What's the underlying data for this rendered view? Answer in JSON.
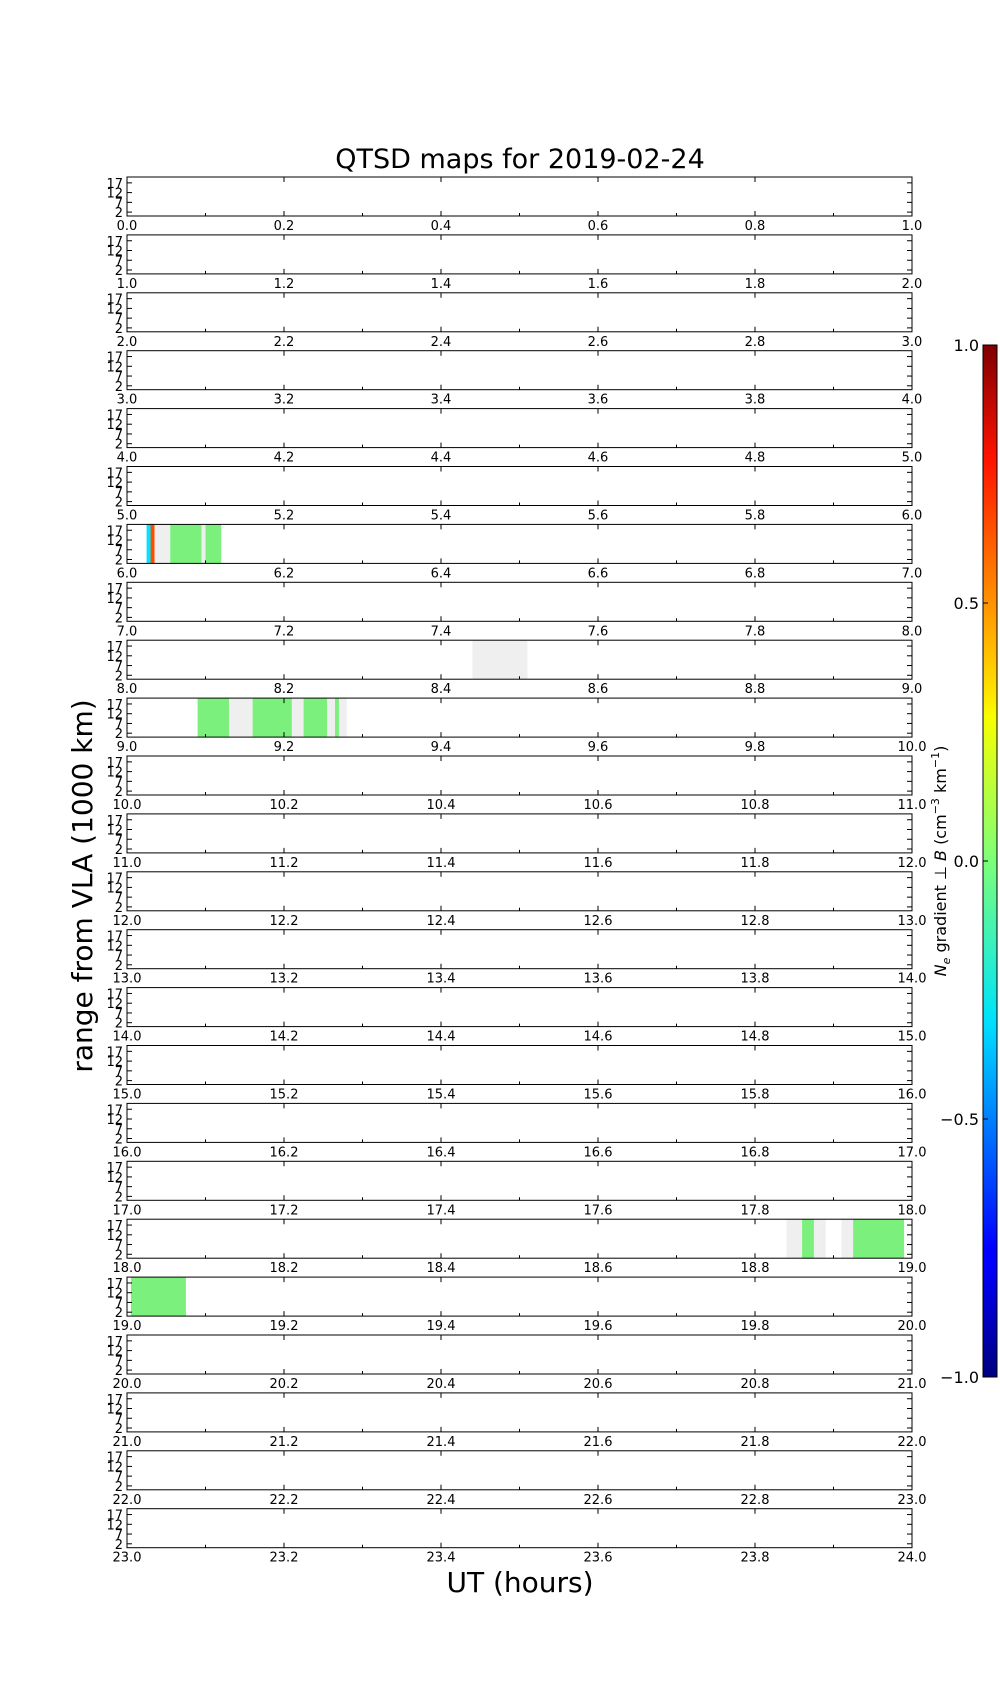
{
  "chart_data": {
    "type": "heatmap",
    "title": "QTSD maps for 2019-02-24",
    "xlabel": "UT (hours)",
    "ylabel": "range from VLA (1000 km)",
    "y_ticks": [
      "2",
      "7",
      "12",
      "17"
    ],
    "y_range": [
      0,
      20
    ],
    "panels": [
      {
        "hour": 0,
        "x_ticks": [
          "0.0",
          "0.2",
          "0.4",
          "0.6",
          "0.8",
          "1.0"
        ],
        "segments": []
      },
      {
        "hour": 1,
        "x_ticks": [
          "1.0",
          "1.2",
          "1.4",
          "1.6",
          "1.8",
          "2.0"
        ],
        "segments": []
      },
      {
        "hour": 2,
        "x_ticks": [
          "2.0",
          "2.2",
          "2.4",
          "2.6",
          "2.8",
          "3.0"
        ],
        "segments": []
      },
      {
        "hour": 3,
        "x_ticks": [
          "3.0",
          "3.2",
          "3.4",
          "3.6",
          "3.8",
          "4.0"
        ],
        "segments": []
      },
      {
        "hour": 4,
        "x_ticks": [
          "4.0",
          "4.2",
          "4.4",
          "4.6",
          "4.8",
          "5.0"
        ],
        "segments": []
      },
      {
        "hour": 5,
        "x_ticks": [
          "5.0",
          "5.2",
          "5.4",
          "5.6",
          "5.8",
          "6.0"
        ],
        "segments": []
      },
      {
        "hour": 6,
        "x_ticks": [
          "6.0",
          "6.2",
          "6.4",
          "6.6",
          "6.8",
          "7.0"
        ],
        "segments": [
          {
            "t0": 6.025,
            "t1": 6.055,
            "kind": "nodata"
          },
          {
            "t0": 6.025,
            "t1": 6.035,
            "kind": "value",
            "value": -0.3
          },
          {
            "t0": 6.03,
            "t1": 6.035,
            "kind": "value",
            "value": 0.6
          },
          {
            "t0": 6.055,
            "t1": 6.095,
            "kind": "value",
            "value": 0.0
          },
          {
            "t0": 6.095,
            "t1": 6.1,
            "kind": "nodata"
          },
          {
            "t0": 6.1,
            "t1": 6.12,
            "kind": "value",
            "value": 0.0
          }
        ]
      },
      {
        "hour": 7,
        "x_ticks": [
          "7.0",
          "7.2",
          "7.4",
          "7.6",
          "7.8",
          "8.0"
        ],
        "segments": []
      },
      {
        "hour": 8,
        "x_ticks": [
          "8.0",
          "8.2",
          "8.4",
          "8.6",
          "8.8",
          "9.0"
        ],
        "segments": [
          {
            "t0": 8.44,
            "t1": 8.51,
            "kind": "nodata"
          }
        ]
      },
      {
        "hour": 9,
        "x_ticks": [
          "9.0",
          "9.2",
          "9.4",
          "9.6",
          "9.8",
          "10.0"
        ],
        "segments": [
          {
            "t0": 9.09,
            "t1": 9.13,
            "kind": "value",
            "value": 0.0
          },
          {
            "t0": 9.13,
            "t1": 9.16,
            "kind": "nodata"
          },
          {
            "t0": 9.16,
            "t1": 9.21,
            "kind": "value",
            "value": 0.0
          },
          {
            "t0": 9.21,
            "t1": 9.225,
            "kind": "nodata"
          },
          {
            "t0": 9.225,
            "t1": 9.255,
            "kind": "value",
            "value": 0.0
          },
          {
            "t0": 9.255,
            "t1": 9.28,
            "kind": "nodata"
          },
          {
            "t0": 9.265,
            "t1": 9.27,
            "kind": "value",
            "value": 0.05
          }
        ]
      },
      {
        "hour": 10,
        "x_ticks": [
          "10.0",
          "10.2",
          "10.4",
          "10.6",
          "10.8",
          "11.0"
        ],
        "segments": []
      },
      {
        "hour": 11,
        "x_ticks": [
          "11.0",
          "11.2",
          "11.4",
          "11.6",
          "11.8",
          "12.0"
        ],
        "segments": []
      },
      {
        "hour": 12,
        "x_ticks": [
          "12.0",
          "12.2",
          "12.4",
          "12.6",
          "12.8",
          "13.0"
        ],
        "segments": []
      },
      {
        "hour": 13,
        "x_ticks": [
          "13.0",
          "13.2",
          "13.4",
          "13.6",
          "13.8",
          "14.0"
        ],
        "segments": []
      },
      {
        "hour": 14,
        "x_ticks": [
          "14.0",
          "14.2",
          "14.4",
          "14.6",
          "14.8",
          "15.0"
        ],
        "segments": []
      },
      {
        "hour": 15,
        "x_ticks": [
          "15.0",
          "15.2",
          "15.4",
          "15.6",
          "15.8",
          "16.0"
        ],
        "segments": []
      },
      {
        "hour": 16,
        "x_ticks": [
          "16.0",
          "16.2",
          "16.4",
          "16.6",
          "16.8",
          "17.0"
        ],
        "segments": []
      },
      {
        "hour": 17,
        "x_ticks": [
          "17.0",
          "17.2",
          "17.4",
          "17.6",
          "17.8",
          "18.0"
        ],
        "segments": []
      },
      {
        "hour": 18,
        "x_ticks": [
          "18.0",
          "18.2",
          "18.4",
          "18.6",
          "18.8",
          "19.0"
        ],
        "segments": [
          {
            "t0": 18.84,
            "t1": 18.88,
            "kind": "nodata"
          },
          {
            "t0": 18.86,
            "t1": 18.875,
            "kind": "value",
            "value": 0.0
          },
          {
            "t0": 18.88,
            "t1": 18.89,
            "kind": "nodata"
          },
          {
            "t0": 18.91,
            "t1": 18.925,
            "kind": "nodata"
          },
          {
            "t0": 18.925,
            "t1": 18.99,
            "kind": "value",
            "value": 0.0
          }
        ]
      },
      {
        "hour": 19,
        "x_ticks": [
          "19.0",
          "19.2",
          "19.4",
          "19.6",
          "19.8",
          "20.0"
        ],
        "segments": [
          {
            "t0": 19.005,
            "t1": 19.075,
            "kind": "value",
            "value": 0.0
          }
        ]
      },
      {
        "hour": 20,
        "x_ticks": [
          "20.0",
          "20.2",
          "20.4",
          "20.6",
          "20.8",
          "21.0"
        ],
        "segments": []
      },
      {
        "hour": 21,
        "x_ticks": [
          "21.0",
          "21.2",
          "21.4",
          "21.6",
          "21.8",
          "22.0"
        ],
        "segments": []
      },
      {
        "hour": 22,
        "x_ticks": [
          "22.0",
          "22.2",
          "22.4",
          "22.6",
          "22.8",
          "23.0"
        ],
        "segments": []
      },
      {
        "hour": 23,
        "x_ticks": [
          "23.0",
          "23.2",
          "23.4",
          "23.6",
          "23.8",
          "24.0"
        ],
        "segments": []
      }
    ],
    "colorbar": {
      "label_sym": "N",
      "label_sub": "e",
      "label_mid": " gradient ⊥ ",
      "label_vec": "B",
      "label_unit_open": " (cm",
      "label_exp1": "−3",
      "label_unit_mid": " km",
      "label_exp2": "−1",
      "label_unit_close": ")",
      "range": [
        -1.0,
        1.0
      ],
      "ticks": [
        "1.0",
        "0.5",
        "0.0",
        "−0.5",
        "−1.0"
      ],
      "colormap": "jet"
    },
    "colors": {
      "nodata": "#efefef",
      "value_zero": "#7cf07c"
    }
  }
}
